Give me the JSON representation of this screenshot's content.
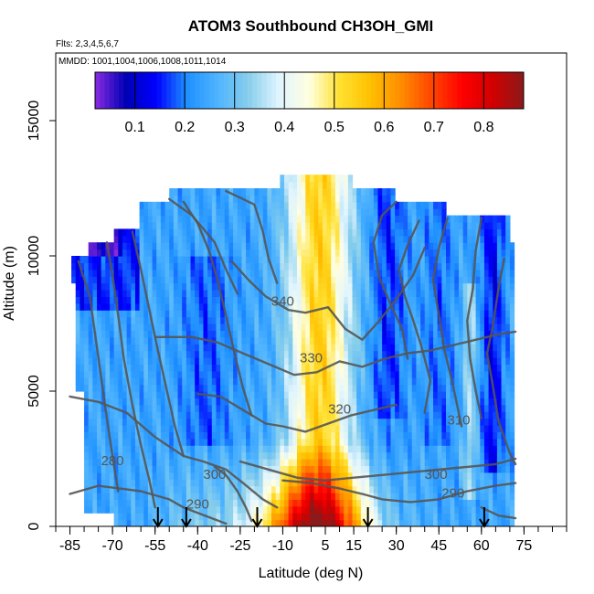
{
  "chart_data": {
    "type": "heatmap",
    "title": "ATOM3 Southbound CH3OH_GMI",
    "subtitle_flights": "Flts: 2,3,4,5,6,7",
    "subtitle_dates": "MMDD: 1001,1004,1006,1008,1011,1014",
    "xlabel": "Latitude (deg N)",
    "ylabel": "Altitude (m)",
    "xlim": [
      -90,
      90
    ],
    "ylim": [
      0,
      17500
    ],
    "x_ticks": [
      -85,
      -70,
      -55,
      -40,
      -25,
      -10,
      5,
      15,
      30,
      45,
      60,
      75
    ],
    "x_tick_labels": [
      "-85",
      "-70",
      "-55",
      "-40",
      "-25",
      "-10",
      "5",
      "15",
      "30",
      "45",
      "60",
      "75"
    ],
    "y_ticks": [
      0,
      5000,
      10000,
      15000
    ],
    "y_tick_labels": [
      "0",
      "5000",
      "10000",
      "15000"
    ],
    "colorbar": {
      "range": [
        0.02,
        0.88
      ],
      "ticks": [
        0.1,
        0.2,
        0.3,
        0.4,
        0.5,
        0.6,
        0.7,
        0.8
      ],
      "tick_labels": [
        "0.1",
        "0.2",
        "0.3",
        "0.4",
        "0.5",
        "0.6",
        "0.7",
        "0.8"
      ],
      "colors": [
        "#8a2be2",
        "#0000b4",
        "#0000ff",
        "#1e90ff",
        "#4fb4ff",
        "#87ceeb",
        "#dff4ff",
        "#ffffe0",
        "#ffe030",
        "#ffc000",
        "#ff8c00",
        "#ff4500",
        "#ff0000",
        "#d00000",
        "#8b1a1a"
      ]
    },
    "contour_labels": [
      {
        "text": "340",
        "lat": -10,
        "alt": 8300
      },
      {
        "text": "330",
        "lat": 0,
        "alt": 6200
      },
      {
        "text": "320",
        "lat": 10,
        "alt": 4300
      },
      {
        "text": "310",
        "lat": 52,
        "alt": 3900
      },
      {
        "text": "300",
        "lat": -34,
        "alt": 1900
      },
      {
        "text": "300",
        "lat": 44,
        "alt": 1900
      },
      {
        "text": "290",
        "lat": -40,
        "alt": 800
      },
      {
        "text": "290",
        "lat": 50,
        "alt": 1200
      },
      {
        "text": "280",
        "lat": -70,
        "alt": 2400
      }
    ],
    "flight_turn_arrows_lat": [
      -54,
      -44,
      -19,
      20,
      61
    ]
  }
}
